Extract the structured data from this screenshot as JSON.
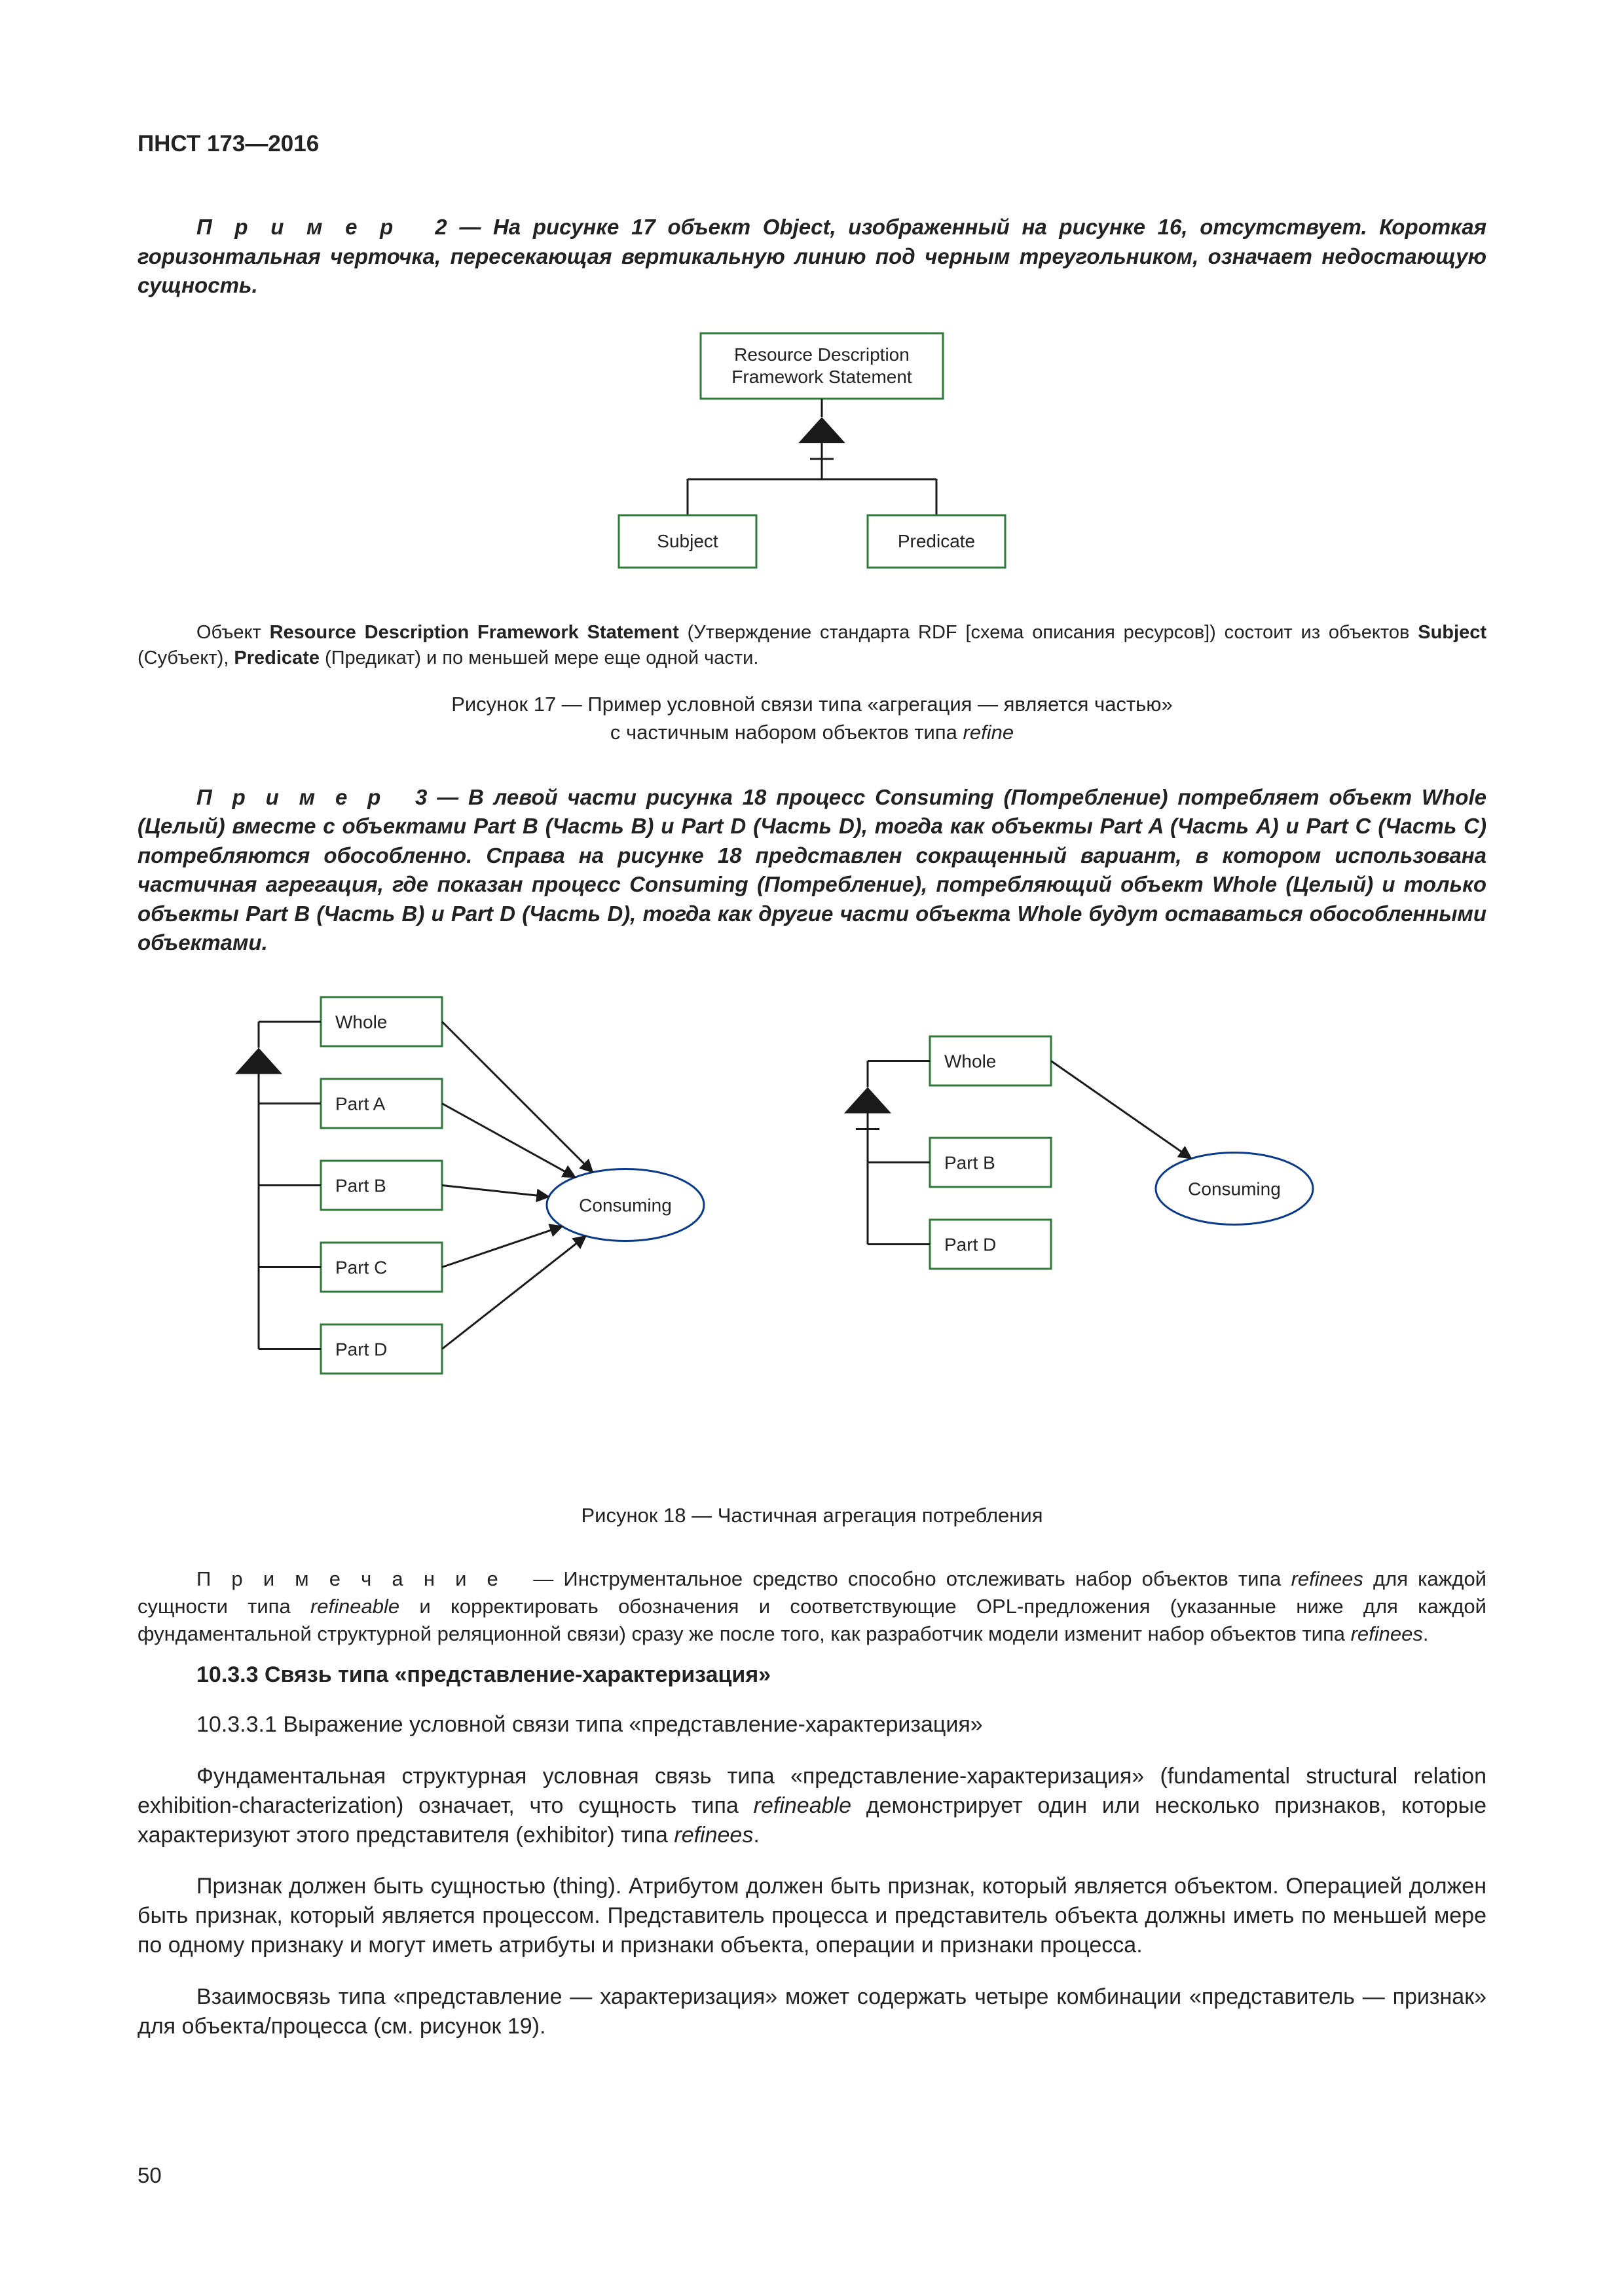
{
  "header": "ПНСТ 173—2016",
  "example2": {
    "lead": "П р и м е р",
    "num": "2",
    "text": "— На рисунке 17 объект Object, изображенный на рисунке 16, отсутствует. Короткая горизонтальная черточка, пересекающая вертикальную линию под черным треугольником, означает недостающую сущность."
  },
  "fig17": {
    "nodes": {
      "top": "Resource Description\nFramework Statement",
      "left": "Subject",
      "right": "Predicate"
    },
    "caption_below_small": "Объект <b>Resource Description Framework Statement</b> (Утверждение стандарта RDF [схема описания ресурсов]) состоит из объектов <b>Subject</b> (Субъект), <b>Predicate</b> (Предикат) и по меньшей мере еще одной части.",
    "caption": "Рисунок 17 — Пример условной связи типа «агрегация — является частью»\nс частичным набором объектов типа <i>refine</i>",
    "stroke": "#2f7a3a",
    "fill": "#ffffff",
    "line_color": "#1a1a1a",
    "triangle_fill": "#1a1a1a",
    "font_size": 28
  },
  "example3": {
    "lead": "П р и м е р",
    "num": "3",
    "text": "— В левой части рисунка 18 процесс Consuming (Потребление) потребляет объект Whole (Целый) вместе с объектами Part B (Часть B) и Part D (Часть D), тогда как объекты Part A (Часть A) и Part C (Часть C) потребляются обособленно. Справа на рисунке 18 представлен сокращенный вариант, в котором использована частичная агрегация, где показан процесс Consuming (Потребление), потребляющий объект Whole (Целый) и только объекты Part B (Часть B) и Part D (Часть D), тогда как другие части объекта Whole будут оставаться обособленными объектами."
  },
  "fig18": {
    "left": {
      "whole": "Whole",
      "parts": [
        "Part A",
        "Part B",
        "Part C",
        "Part D"
      ],
      "process": "Consuming"
    },
    "right": {
      "whole": "Whole",
      "parts": [
        "Part B",
        "Part D"
      ],
      "process": "Consuming"
    },
    "caption": "Рисунок 18 — Частичная агрегация потребления",
    "box_stroke": "#2f7a3a",
    "ellipse_stroke": "#0a3a8a",
    "line_color": "#1a1a1a",
    "triangle_fill": "#1a1a1a",
    "font_size": 28
  },
  "note": {
    "lead": "П р и м е ч а н и е",
    "text": "— Инструментальное средство способно отслеживать набор объектов типа <i>refinees</i> для каждой сущности типа <i>refineable</i> и корректировать обозначения и соответствующие OPL-предложения (указанные ниже для каждой фундаментальной структурной реляционной связи) сразу же после того, как разработчик модели изменит набор объектов типа <i>refinees</i>."
  },
  "section": {
    "heading": "10.3.3 Связь типа «представление-характеризация»",
    "sub": "10.3.3.1 Выражение условной связи типа «представление-характеризация»",
    "p1": "Фундаментальная структурная условная связь типа «представление-характеризация» (fundamental structural relation exhibition-characterization) означает, что сущность типа <i>refineable</i> демонстрирует один или несколько признаков, которые характеризуют этого представителя (exhibitor) типа <i>refinees</i>.",
    "p2": "Признак должен быть сущностью (thing). Атрибутом должен быть признак, который является объектом. Операцией должен быть признак, который является процессом. Представитель процесса и представитель объекта должны иметь по меньшей мере по одному признаку и могут иметь атрибуты и признаки объекта, операции и признаки процесса.",
    "p3": "Взаимосвязь типа «представление — характеризация» может содержать четыре комбинации «представитель — признак» для объекта/процесса (см. рисунок 19)."
  },
  "pageNumber": "50"
}
